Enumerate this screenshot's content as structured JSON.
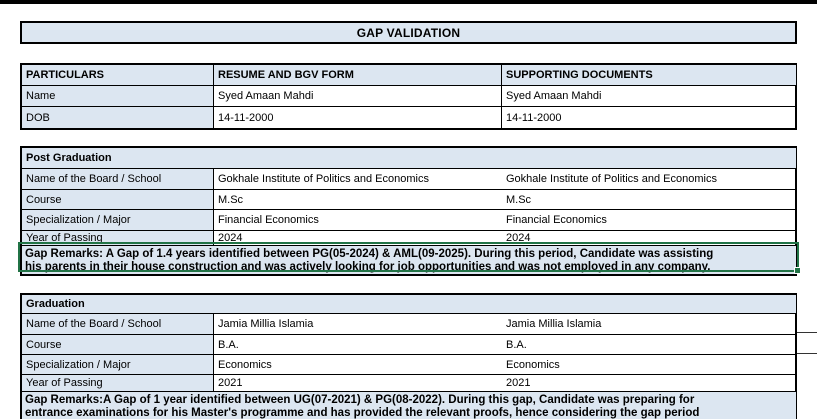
{
  "title": "GAP VALIDATION",
  "colors": {
    "header_fill": "#dce6f1",
    "selection_green": "#217346",
    "border": "#000000"
  },
  "personal_table": {
    "headers": [
      "PARTICULARS",
      "RESUME AND BGV FORM",
      "SUPPORTING DOCUMENTS"
    ],
    "rows": [
      {
        "label": "Name",
        "resume": "Syed Amaan Mahdi",
        "supporting": "Syed Amaan Mahdi"
      },
      {
        "label": "DOB",
        "resume": "14-11-2000",
        "supporting": "14-11-2000"
      }
    ]
  },
  "post_graduation": {
    "section_title": "Post Graduation",
    "rows": [
      {
        "label": "Name of the Board / School",
        "resume": "Gokhale Institute of Politics and Economics",
        "supporting": "Gokhale Institute of Politics and Economics"
      },
      {
        "label": "Course",
        "resume": "M.Sc",
        "supporting": "M.Sc"
      },
      {
        "label": "Specialization / Major",
        "resume": "Financial Economics",
        "supporting": "Financial Economics"
      },
      {
        "label": "Year of Passing",
        "resume": "2024",
        "supporting": "2024"
      }
    ],
    "remarks_lines": [
      "Gap Remarks: A Gap of 1.4 years identified between PG(05-2024) & AML(09-2025). During this period, Candidate was assisting",
      "his parents in their house construction and was actively looking for job opportunities and was not employed in any company."
    ]
  },
  "graduation": {
    "section_title": "Graduation",
    "rows": [
      {
        "label": "Name of the Board / School",
        "resume": "Jamia Millia Islamia",
        "supporting": "Jamia Millia Islamia"
      },
      {
        "label": "Course",
        "resume": "B.A.",
        "supporting": "B.A."
      },
      {
        "label": "Specialization / Major",
        "resume": "Economics",
        "supporting": "Economics"
      },
      {
        "label": "Year of Passing",
        "resume": "2021",
        "supporting": "2021"
      }
    ],
    "remarks_lines": [
      "Gap Remarks:A Gap of 1 year identified between UG(07-2021) & PG(08-2022). During this gap, Candidate was preparing for",
      "entrance examinations for his Master's programme and has provided the relevant proofs, hence considering the gap period"
    ]
  }
}
